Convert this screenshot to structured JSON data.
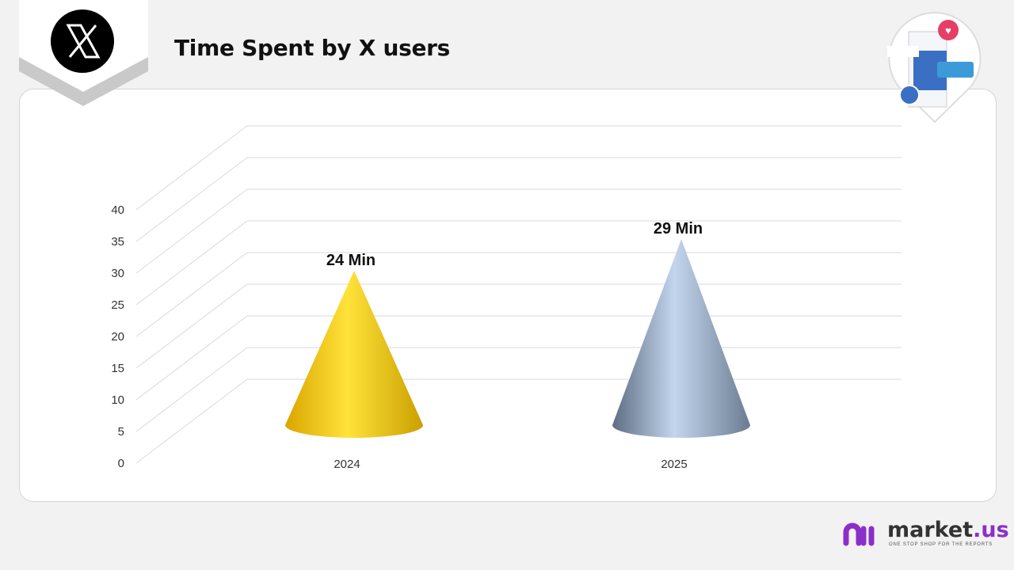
{
  "header": {
    "title": "Time Spent by X users",
    "logo_icon": "x-logo-icon"
  },
  "brand": {
    "name": "market",
    "suffix": ".us",
    "tagline": "ONE STOP SHOP FOR THE REPORTS"
  },
  "chart_data": {
    "type": "bar",
    "subtype": "3d-cone",
    "title": "Time Spent by X users",
    "categories": [
      "2024",
      "2025"
    ],
    "values": [
      24,
      29
    ],
    "data_labels": [
      "24 Min",
      "29 Min"
    ],
    "colors": [
      "#f2c200",
      "#8fa3bd"
    ],
    "ylim": [
      0,
      40
    ],
    "yticks": [
      "0",
      "5",
      "10",
      "15",
      "20",
      "25",
      "30",
      "35",
      "40"
    ],
    "grid": true,
    "xlabel": "",
    "ylabel": ""
  }
}
